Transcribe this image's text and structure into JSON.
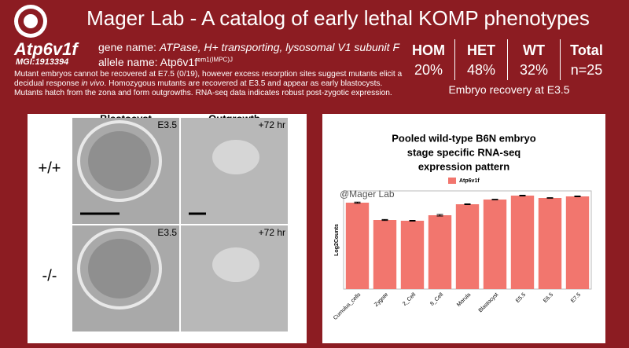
{
  "header": {
    "title": "Mager Lab - A catalog of early lethal KOMP phenotypes"
  },
  "gene": {
    "symbol": "Atp6v1f",
    "mgi": "MGI:1913394",
    "gene_name_label": "gene name:",
    "gene_name": "ATPase, H+ transporting, lysosomal V1 subunit F",
    "allele_label": "allele name:",
    "allele_base": "Atp6v1f",
    "allele_sup": "em1(IMPC)J"
  },
  "recovery": {
    "columns": [
      "HOM",
      "HET",
      "WT",
      "Total"
    ],
    "values": [
      "20%",
      "48%",
      "32%",
      "n=25"
    ],
    "caption": "Embryo recovery at E3.5"
  },
  "description": [
    "Mutant embryos cannot be recovered at E7.5 (0/19), however excess resorption sites suggest mutants elicit a decidual response ",
    "in vivo",
    ". Homozygous mutants are recovered at E3.5 and appear as early blastocysts. Mutants hatch from the zona and form outgrowths. RNA-seq data indicates robust post-zygotic expression."
  ],
  "images": {
    "columns": [
      "Blastocyst",
      "Outgrowth"
    ],
    "rows": [
      "+/+",
      "-/-"
    ],
    "stage_labels": [
      [
        "E3.5",
        "+72 hr"
      ],
      [
        "E3.5",
        "+72 hr"
      ]
    ]
  },
  "chart_data": {
    "type": "bar",
    "title_lines": [
      "Pooled wild-type B6N embryo",
      "stage specific RNA-seq",
      "expression pattern"
    ],
    "ylabel": "Log2Counts",
    "watermark": "@Mager Lab",
    "categories": [
      "Cumulus_cells",
      "Zygote",
      "2_Cell",
      "8_Cell",
      "Morula",
      "Blastocyst",
      "E5.5",
      "E6.5",
      "E7.5"
    ],
    "series": [
      {
        "name": "Atp6v1f",
        "color": "#f2766e",
        "values": [
          11.0,
          8.8,
          8.7,
          9.4,
          10.8,
          11.4,
          11.9,
          11.6,
          11.8
        ],
        "errors": [
          0.08,
          0.06,
          0.05,
          0.1,
          0.05,
          0.04,
          0.05,
          0.04,
          0.05
        ]
      }
    ],
    "ylim": [
      0,
      12.5
    ]
  }
}
